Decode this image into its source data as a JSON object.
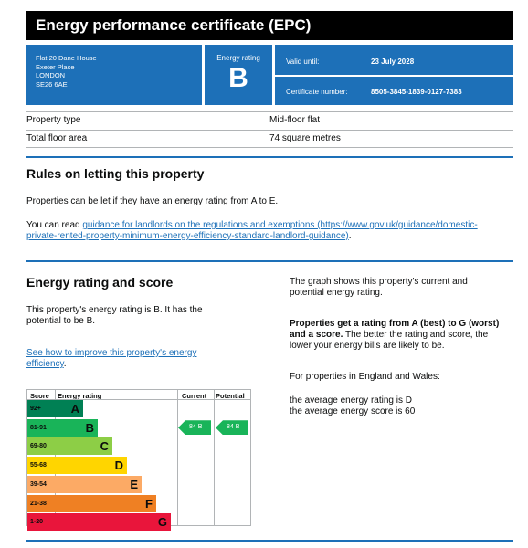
{
  "title": "Energy performance certificate (EPC)",
  "address": [
    "Flat 20 Dane House",
    "Exeter Place",
    "LONDON",
    "SE26 6AE"
  ],
  "rating": {
    "label": "Energy rating",
    "value": "B"
  },
  "meta": {
    "valid_until_label": "Valid until:",
    "valid_until": "23 July 2028",
    "certificate_label": "Certificate number:",
    "certificate": "8505-3845-1839-0127-7383"
  },
  "property": [
    {
      "key": "Property type",
      "value": "Mid-floor flat"
    },
    {
      "key": "Total floor area",
      "value": "74 square metres"
    }
  ],
  "letting": {
    "heading": "Rules on letting this property",
    "p1": "Properties can be let if they have an energy rating from A to E.",
    "p2_prefix": "You can read ",
    "p2_link_line1": "guidance for landlords on the regulations and exemptions (https://www.gov.uk/guidance/domestic-",
    "p2_link_line2": "private-rented-property-minimum-energy-efficiency-standard-landlord-guidance)",
    "p2_suffix": "."
  },
  "score": {
    "heading": "Energy rating and score",
    "p1_line1": "This property's energy rating is B. It has the",
    "p1_line2": "potential to be B.",
    "link_line1": "See how to improve this property's energy",
    "link_line2": "efficiency",
    "link_suffix": "."
  },
  "graph": {
    "headers": {
      "score": "Score",
      "rating": "Energy rating",
      "current": "Current",
      "potential": "Potential"
    },
    "bands": [
      {
        "score": "92+",
        "letter": "A",
        "color": "#008054",
        "text": "#0b0c0c"
      },
      {
        "score": "81-91",
        "letter": "B",
        "color": "#19b459",
        "text": "#0b0c0c"
      },
      {
        "score": "69-80",
        "letter": "C",
        "color": "#8dce46",
        "text": "#0b0c0c"
      },
      {
        "score": "55-68",
        "letter": "D",
        "color": "#ffd500",
        "text": "#0b0c0c"
      },
      {
        "score": "39-54",
        "letter": "E",
        "color": "#fcaa65",
        "text": "#0b0c0c"
      },
      {
        "score": "21-38",
        "letter": "F",
        "color": "#ef8023",
        "text": "#0b0c0c"
      },
      {
        "score": "1-20",
        "letter": "G",
        "color": "#e9153b",
        "text": "#0b0c0c"
      }
    ],
    "current": "84  B",
    "potential": "84  B",
    "current_band": 1,
    "potential_band": 1
  },
  "right": {
    "p1_line1": "The graph shows this property's current and",
    "p1_line2": "potential energy rating.",
    "bold_line1": "Properties get a rating from A (best) to G (worst)",
    "bold_line2": "and a score.",
    "rest_line2": " The better the rating and score, the",
    "line3": "lower your energy bills are likely to be.",
    "p3": "For properties in England and Wales:",
    "p4": "the average energy rating is D",
    "p5": "the average energy score is 60"
  }
}
